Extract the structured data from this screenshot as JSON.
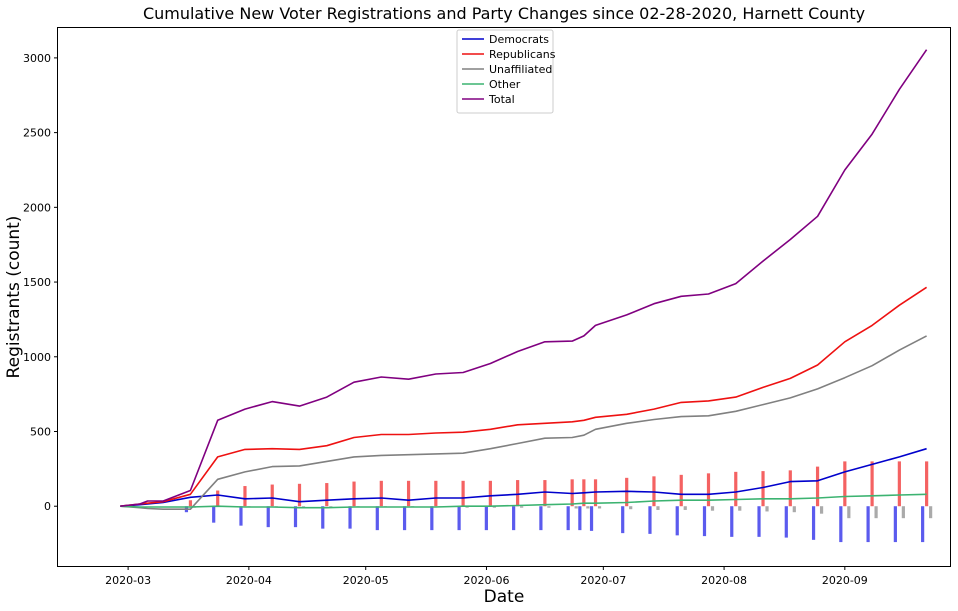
{
  "chart_data": {
    "type": "line",
    "title": "Cumulative New Voter Registrations and Party Changes since 02-28-2020, Harnett County",
    "xlabel": "Date",
    "ylabel": "Registrants (count)",
    "ylim": [
      -400,
      3200
    ],
    "yticks": [
      0,
      500,
      1000,
      1500,
      2000,
      2500,
      3000
    ],
    "x_start": "2020-02-12",
    "x_end": "2020-09-28",
    "xticks": [
      {
        "date": "2020-03-01",
        "label": "2020-03"
      },
      {
        "date": "2020-04-01",
        "label": "2020-04"
      },
      {
        "date": "2020-05-01",
        "label": "2020-05"
      },
      {
        "date": "2020-06-01",
        "label": "2020-06"
      },
      {
        "date": "2020-07-01",
        "label": "2020-07"
      },
      {
        "date": "2020-08-01",
        "label": "2020-08"
      },
      {
        "date": "2020-09-01",
        "label": "2020-09"
      }
    ],
    "legend_position": "top-center",
    "x": [
      "2020-02-28",
      "2020-03-04",
      "2020-03-06",
      "2020-03-10",
      "2020-03-17",
      "2020-03-24",
      "2020-03-31",
      "2020-04-07",
      "2020-04-14",
      "2020-04-21",
      "2020-04-28",
      "2020-05-05",
      "2020-05-12",
      "2020-05-19",
      "2020-05-26",
      "2020-06-02",
      "2020-06-09",
      "2020-06-16",
      "2020-06-23",
      "2020-06-26",
      "2020-06-29",
      "2020-07-07",
      "2020-07-14",
      "2020-07-21",
      "2020-07-28",
      "2020-08-04",
      "2020-08-11",
      "2020-08-18",
      "2020-08-25",
      "2020-09-01",
      "2020-09-08",
      "2020-09-15",
      "2020-09-22"
    ],
    "series": [
      {
        "name": "Democrats",
        "color": "#0000cc",
        "values": [
          0,
          10,
          15,
          25,
          60,
          75,
          50,
          55,
          30,
          40,
          50,
          55,
          40,
          55,
          55,
          70,
          80,
          95,
          85,
          90,
          95,
          100,
          95,
          80,
          80,
          95,
          125,
          165,
          170,
          230,
          280,
          330,
          385
        ]
      },
      {
        "name": "Republicans",
        "color": "#ee1111",
        "values": [
          0,
          15,
          20,
          30,
          80,
          330,
          380,
          385,
          380,
          405,
          460,
          480,
          480,
          490,
          495,
          515,
          545,
          555,
          565,
          575,
          595,
          615,
          650,
          695,
          705,
          730,
          795,
          855,
          945,
          1100,
          1210,
          1345,
          1465
        ]
      },
      {
        "name": "Unaffiliated",
        "color": "#808080",
        "values": [
          0,
          -10,
          -15,
          -20,
          -20,
          180,
          230,
          265,
          270,
          300,
          330,
          340,
          345,
          350,
          355,
          385,
          420,
          455,
          460,
          475,
          515,
          555,
          580,
          600,
          605,
          635,
          680,
          725,
          785,
          860,
          940,
          1045,
          1140
        ]
      },
      {
        "name": "Other",
        "color": "#3cb371",
        "values": [
          0,
          -5,
          -5,
          -5,
          -5,
          0,
          -5,
          -5,
          -10,
          -10,
          -5,
          -5,
          -5,
          -5,
          0,
          0,
          5,
          10,
          15,
          20,
          20,
          25,
          35,
          40,
          40,
          45,
          50,
          50,
          55,
          65,
          70,
          75,
          80
        ]
      },
      {
        "name": "Total",
        "color": "#800080",
        "values": [
          0,
          15,
          35,
          35,
          105,
          575,
          650,
          700,
          670,
          730,
          830,
          865,
          850,
          885,
          895,
          955,
          1035,
          1100,
          1105,
          1140,
          1210,
          1280,
          1355,
          1405,
          1420,
          1490,
          1640,
          1785,
          1940,
          2250,
          2490,
          2790,
          3055
        ]
      }
    ],
    "party_change_bars": {
      "dates": [
        "2020-03-17",
        "2020-03-24",
        "2020-03-31",
        "2020-04-07",
        "2020-04-14",
        "2020-04-21",
        "2020-04-28",
        "2020-05-05",
        "2020-05-12",
        "2020-05-19",
        "2020-05-26",
        "2020-06-02",
        "2020-06-09",
        "2020-06-16",
        "2020-06-23",
        "2020-06-26",
        "2020-06-29",
        "2020-07-07",
        "2020-07-14",
        "2020-07-21",
        "2020-07-28",
        "2020-08-04",
        "2020-08-11",
        "2020-08-18",
        "2020-08-25",
        "2020-09-01",
        "2020-09-08",
        "2020-09-15",
        "2020-09-22"
      ],
      "democrats": [
        -40,
        -110,
        -130,
        -140,
        -140,
        -150,
        -150,
        -160,
        -160,
        -160,
        -160,
        -160,
        -160,
        -160,
        -160,
        -160,
        -165,
        -180,
        -185,
        -195,
        -200,
        -205,
        -205,
        -210,
        -225,
        -240,
        -240,
        -240,
        -240
      ],
      "republicans": [
        40,
        105,
        135,
        145,
        150,
        155,
        165,
        170,
        170,
        170,
        170,
        170,
        175,
        175,
        180,
        180,
        180,
        190,
        200,
        210,
        220,
        230,
        235,
        240,
        265,
        300,
        300,
        300,
        300
      ],
      "unaffiliated": [
        -10,
        -5,
        -5,
        -5,
        -5,
        -5,
        -5,
        -5,
        -5,
        -5,
        -10,
        -10,
        -10,
        -10,
        -15,
        -15,
        -15,
        -20,
        -25,
        -25,
        -30,
        -30,
        -35,
        -40,
        -50,
        -80,
        -80,
        -80,
        -80
      ],
      "colors": {
        "democrats": "#5b5bee",
        "republicans": "#f46262",
        "unaffiliated": "#aaaaaa"
      }
    }
  }
}
